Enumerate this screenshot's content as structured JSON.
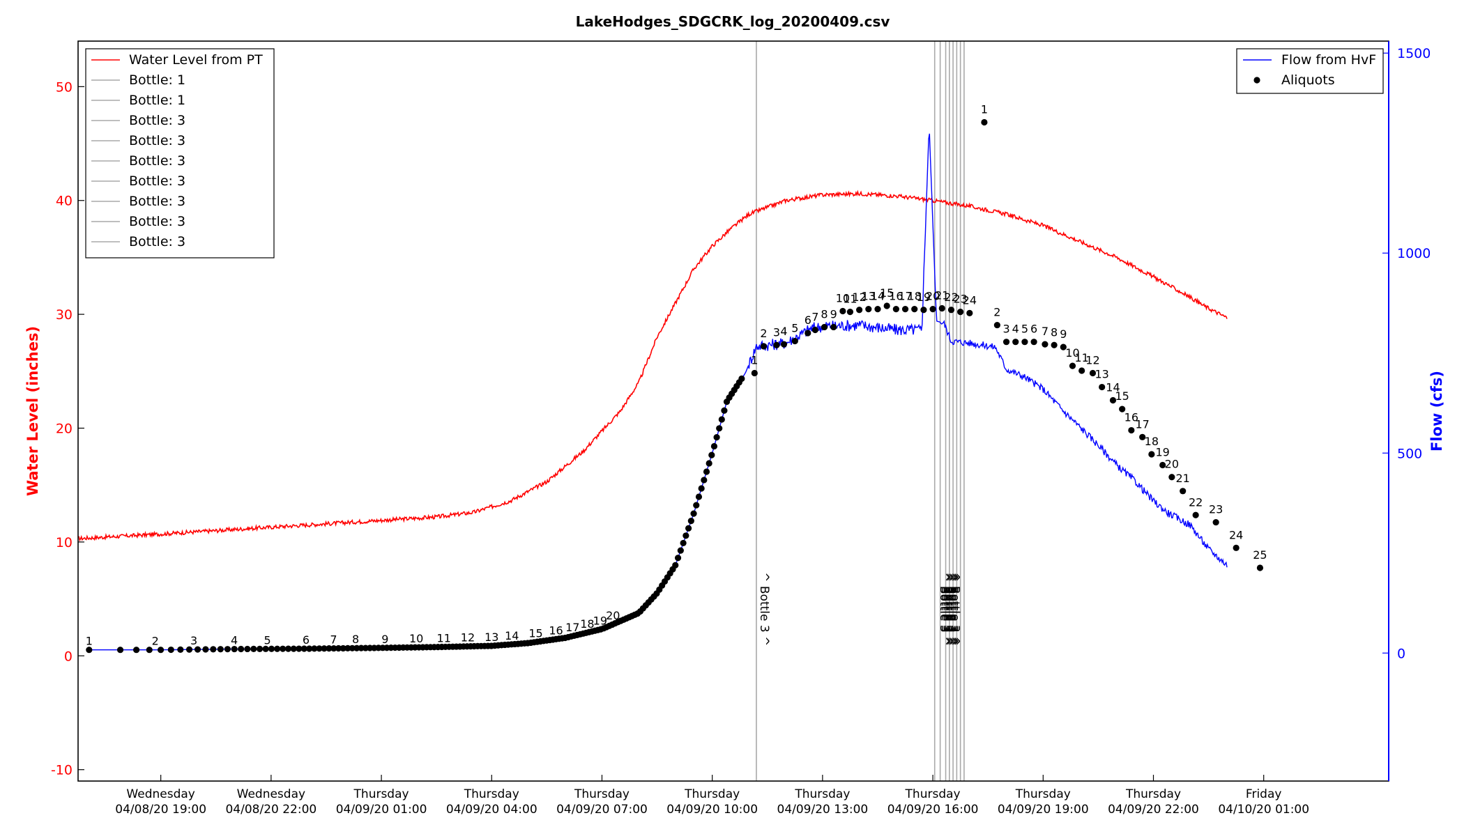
{
  "chart_data": {
    "type": "line",
    "title": "LakeHodges_SDGCRK_log_20200409.csv",
    "ylabel_left": "Water Level (inches)",
    "ylabel_right": "Flow (cfs)",
    "xlabel": "",
    "x_unit": "hours since 04/08/20 19:00",
    "xlim": [
      -4.25,
      31.4
    ],
    "ylim_left": [
      -11,
      54
    ],
    "ylim_right": [
      -320,
      1530
    ],
    "left_ticks": [
      -10,
      0,
      10,
      20,
      30,
      40,
      50
    ],
    "right_ticks": [
      0,
      500,
      1000,
      1500
    ],
    "x_ticks": [
      {
        "x": -2,
        "day": "Wednesday",
        "date": "04/08/20 19:00"
      },
      {
        "x": 1,
        "day": "Wednesday",
        "date": "04/08/20 22:00"
      },
      {
        "x": 4,
        "day": "Thursday",
        "date": "04/09/20 01:00"
      },
      {
        "x": 7,
        "day": "Thursday",
        "date": "04/09/20 04:00"
      },
      {
        "x": 10,
        "day": "Thursday",
        "date": "04/09/20 07:00"
      },
      {
        "x": 13,
        "day": "Thursday",
        "date": "04/09/20 10:00"
      },
      {
        "x": 16,
        "day": "Thursday",
        "date": "04/09/20 13:00"
      },
      {
        "x": 19,
        "day": "Thursday",
        "date": "04/09/20 16:00"
      },
      {
        "x": 22,
        "day": "Thursday",
        "date": "04/09/20 19:00"
      },
      {
        "x": 25,
        "day": "Thursday",
        "date": "04/09/20 22:00"
      },
      {
        "x": 28,
        "day": "Friday",
        "date": "04/10/20 01:00"
      }
    ],
    "series": [
      {
        "name": "Water Level from PT",
        "color": "#ff0000",
        "axis": "left",
        "points": [
          [
            -4.25,
            10.3
          ],
          [
            -2,
            10.7
          ],
          [
            0,
            11.1
          ],
          [
            2,
            11.5
          ],
          [
            4,
            11.9
          ],
          [
            5.5,
            12.2
          ],
          [
            6.5,
            12.6
          ],
          [
            7.5,
            13.6
          ],
          [
            8.5,
            15.3
          ],
          [
            9.5,
            18.0
          ],
          [
            10.5,
            21.5
          ],
          [
            11,
            24
          ],
          [
            11.5,
            28
          ],
          [
            12,
            31
          ],
          [
            12.5,
            34
          ],
          [
            13,
            36
          ],
          [
            13.5,
            37.5
          ],
          [
            14,
            38.8
          ],
          [
            15,
            40.0
          ],
          [
            16,
            40.5
          ],
          [
            17,
            40.6
          ],
          [
            18,
            40.4
          ],
          [
            18.5,
            40.2
          ],
          [
            19,
            40.0
          ],
          [
            20,
            39.5
          ],
          [
            21,
            38.8
          ],
          [
            22,
            37.8
          ],
          [
            23,
            36.4
          ],
          [
            24,
            35.0
          ],
          [
            25,
            33.3
          ],
          [
            26,
            31.5
          ],
          [
            26.4,
            30.7
          ],
          [
            27,
            29.7
          ]
        ]
      },
      {
        "name": "Flow from HvF",
        "color": "#0000ff",
        "axis": "right",
        "points": [
          [
            -3.95,
            8
          ],
          [
            -2,
            8
          ],
          [
            0,
            10
          ],
          [
            2,
            11
          ],
          [
            4,
            13
          ],
          [
            5.5,
            15
          ],
          [
            7,
            18
          ],
          [
            8,
            25
          ],
          [
            9,
            38
          ],
          [
            10,
            60
          ],
          [
            11,
            100
          ],
          [
            11.5,
            150
          ],
          [
            12,
            220
          ],
          [
            12.5,
            350
          ],
          [
            13,
            500
          ],
          [
            13.4,
            630
          ],
          [
            13.9,
            700
          ],
          [
            14.2,
            767
          ],
          [
            15,
            775
          ],
          [
            15.7,
            812
          ],
          [
            16,
            817
          ],
          [
            17,
            820
          ],
          [
            18,
            808
          ],
          [
            18.7,
            808
          ],
          [
            18.9,
            1320
          ],
          [
            19.1,
            830
          ],
          [
            19.3,
            825
          ],
          [
            19.5,
            780
          ],
          [
            20,
            775
          ],
          [
            20.7,
            765
          ],
          [
            21,
            710
          ],
          [
            21.5,
            690
          ],
          [
            22,
            660
          ],
          [
            22.5,
            610
          ],
          [
            23,
            565
          ],
          [
            23.5,
            520
          ],
          [
            24,
            470
          ],
          [
            24.5,
            430
          ],
          [
            25,
            380
          ],
          [
            25.4,
            350
          ],
          [
            26,
            320
          ],
          [
            26.5,
            260
          ],
          [
            27,
            220
          ]
        ]
      }
    ],
    "aliquots_rise": {
      "x_start": -3.95,
      "x_end": 13.8,
      "count": 160,
      "labels": [
        {
          "label": "1",
          "x": -3.95
        },
        {
          "label": "2",
          "x": -2.15
        },
        {
          "label": "3",
          "x": -1.1
        },
        {
          "label": "4",
          "x": 0.0
        },
        {
          "label": "5",
          "x": 0.9
        },
        {
          "label": "6",
          "x": 1.95
        },
        {
          "label": "7",
          "x": 2.7
        },
        {
          "label": "8",
          "x": 3.3
        },
        {
          "label": "9",
          "x": 4.1
        },
        {
          "label": "10",
          "x": 4.95
        },
        {
          "label": "11",
          "x": 5.7
        },
        {
          "label": "12",
          "x": 6.35
        },
        {
          "label": "13",
          "x": 7.0
        },
        {
          "label": "14",
          "x": 7.55
        },
        {
          "label": "15",
          "x": 8.2
        },
        {
          "label": "16",
          "x": 8.75
        },
        {
          "label": "17",
          "x": 9.2
        },
        {
          "label": "18",
          "x": 9.6
        },
        {
          "label": "19",
          "x": 9.95
        },
        {
          "label": "20",
          "x": 10.3
        }
      ]
    },
    "aliquots_peak": [
      {
        "label": "1",
        "x": 14.15,
        "y": 700
      },
      {
        "label": "2",
        "x": 14.4,
        "y": 767
      },
      {
        "label": "3",
        "x": 14.75,
        "y": 770
      },
      {
        "label": "4",
        "x": 14.95,
        "y": 772
      },
      {
        "label": "5",
        "x": 15.25,
        "y": 780
      },
      {
        "label": "6",
        "x": 15.6,
        "y": 800
      },
      {
        "label": "7",
        "x": 15.8,
        "y": 808
      },
      {
        "label": "8",
        "x": 16.05,
        "y": 815
      },
      {
        "label": "9",
        "x": 16.3,
        "y": 815
      },
      {
        "label": "10",
        "x": 16.55,
        "y": 855
      },
      {
        "label": "11",
        "x": 16.75,
        "y": 853
      },
      {
        "label": "12",
        "x": 17.0,
        "y": 858
      },
      {
        "label": "13",
        "x": 17.25,
        "y": 860
      },
      {
        "label": "14",
        "x": 17.5,
        "y": 860
      },
      {
        "label": "15",
        "x": 17.75,
        "y": 868
      },
      {
        "label": "16",
        "x": 18.0,
        "y": 860
      },
      {
        "label": "17",
        "x": 18.25,
        "y": 860
      },
      {
        "label": "18",
        "x": 18.5,
        "y": 860
      },
      {
        "label": "19",
        "x": 18.75,
        "y": 858
      },
      {
        "label": "20",
        "x": 19.0,
        "y": 860
      },
      {
        "label": "21",
        "x": 19.25,
        "y": 862
      },
      {
        "label": "22",
        "x": 19.5,
        "y": 858
      },
      {
        "label": "23",
        "x": 19.75,
        "y": 853
      },
      {
        "label": "24",
        "x": 20.0,
        "y": 850
      }
    ],
    "aliquots_fall": [
      {
        "label": "1",
        "x": 20.4,
        "y": 1327
      },
      {
        "label": "2",
        "x": 20.75,
        "y": 820
      },
      {
        "label": "3",
        "x": 21.0,
        "y": 778
      },
      {
        "label": "4",
        "x": 21.25,
        "y": 778
      },
      {
        "label": "5",
        "x": 21.5,
        "y": 778
      },
      {
        "label": "6",
        "x": 21.75,
        "y": 778
      },
      {
        "label": "7",
        "x": 22.05,
        "y": 772
      },
      {
        "label": "8",
        "x": 22.3,
        "y": 770
      },
      {
        "label": "9",
        "x": 22.55,
        "y": 765
      },
      {
        "label": "10",
        "x": 22.8,
        "y": 718
      },
      {
        "label": "11",
        "x": 23.05,
        "y": 706
      },
      {
        "label": "12",
        "x": 23.35,
        "y": 700
      },
      {
        "label": "13",
        "x": 23.6,
        "y": 665
      },
      {
        "label": "14",
        "x": 23.9,
        "y": 632
      },
      {
        "label": "15",
        "x": 24.15,
        "y": 610
      },
      {
        "label": "16",
        "x": 24.4,
        "y": 557
      },
      {
        "label": "17",
        "x": 24.7,
        "y": 540
      },
      {
        "label": "18",
        "x": 24.95,
        "y": 497
      },
      {
        "label": "19",
        "x": 25.25,
        "y": 470
      },
      {
        "label": "20",
        "x": 25.5,
        "y": 440
      },
      {
        "label": "21",
        "x": 25.8,
        "y": 405
      },
      {
        "label": "22",
        "x": 26.15,
        "y": 345
      },
      {
        "label": "23",
        "x": 26.7,
        "y": 327
      },
      {
        "label": "24",
        "x": 27.25,
        "y": 263
      },
      {
        "label": "25",
        "x": 27.9,
        "y": 213
      }
    ],
    "bottle_markers": [
      {
        "label": "Bottle: 1",
        "x": 14.2,
        "annotation": "^ Bottle 3 ^"
      },
      {
        "label": "Bottle: 1",
        "x": 19.05,
        "annotation": "^ Bottle 3 ^"
      },
      {
        "label": "Bottle: 3",
        "x": 19.2,
        "annotation": "^ Bottle 3 ^"
      },
      {
        "label": "Bottle: 3",
        "x": 19.35,
        "annotation": "^ Bottle 3 ^"
      },
      {
        "label": "Bottle: 3",
        "x": 19.45,
        "annotation": "^ Bottle 3 ^"
      },
      {
        "label": "Bottle: 3",
        "x": 19.55,
        "annotation": "^ Bottle 3 ^"
      },
      {
        "label": "Bottle: 3",
        "x": 19.65,
        "annotation": "^ Bottle 3 ^"
      },
      {
        "label": "Bottle: 3",
        "x": 19.75,
        "annotation": "^ Bottle 3 ^"
      },
      {
        "label": "Bottle: 3",
        "x": 19.85,
        "annotation": "^ Bottle 3 ^"
      }
    ],
    "legend_left": {
      "placement": "top-left",
      "entries": [
        "Water Level from PT",
        "Bottle: 1",
        "Bottle: 1",
        "Bottle: 3",
        "Bottle: 3",
        "Bottle: 3",
        "Bottle: 3",
        "Bottle: 3",
        "Bottle: 3",
        "Bottle: 3"
      ]
    },
    "legend_right": {
      "placement": "top-right",
      "entries": [
        "Flow from HvF",
        "Aliquots"
      ]
    },
    "grid": false
  }
}
